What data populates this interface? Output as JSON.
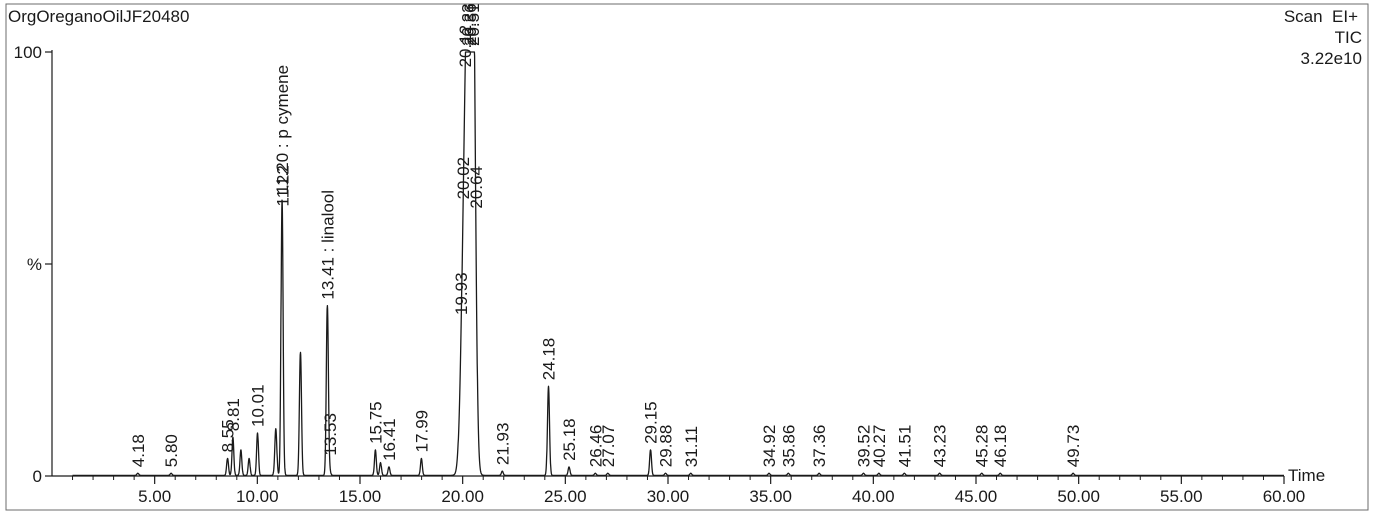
{
  "header": {
    "sample_name": "OrgOreganoOilJF20480",
    "scan_mode": "Scan  EI+",
    "trace": "TIC",
    "intensity": "3.22e10"
  },
  "chart_data": {
    "type": "line",
    "title": "OrgOreganoOilJF20480",
    "xlabel": "Time",
    "ylabel": "%",
    "xlim": [
      0,
      60
    ],
    "ylim": [
      0,
      100
    ],
    "x_ticks": [
      "5.00",
      "10.00",
      "15.00",
      "20.00",
      "25.00",
      "30.00",
      "35.00",
      "40.00",
      "45.00",
      "50.00",
      "55.00",
      "60.00"
    ],
    "x_tick_values": [
      5,
      10,
      15,
      20,
      25,
      30,
      35,
      40,
      45,
      50,
      55,
      60
    ],
    "y_ticks": [
      "0",
      "%",
      "100"
    ],
    "y_tick_values": [
      0,
      50,
      100
    ],
    "peaks": [
      {
        "x": 4.18,
        "y": 0.5,
        "label": "4.18"
      },
      {
        "x": 5.8,
        "y": 0.5,
        "label": "5.80"
      },
      {
        "x": 8.55,
        "y": 4,
        "label": "8.55"
      },
      {
        "x": 8.81,
        "y": 9,
        "label": "8.81"
      },
      {
        "x": 9.2,
        "y": 6,
        "label": ""
      },
      {
        "x": 9.6,
        "y": 4,
        "label": ""
      },
      {
        "x": 10.01,
        "y": 10,
        "label": "10.01"
      },
      {
        "x": 10.9,
        "y": 11,
        "label": ""
      },
      {
        "x": 11.2,
        "y": 52,
        "label": "11.20 : p cymene"
      },
      {
        "x": 11.22,
        "y": 14,
        "label": "11.22"
      },
      {
        "x": 12.1,
        "y": 29,
        "label": ""
      },
      {
        "x": 13.41,
        "y": 40,
        "label": "13.41 : linalool"
      },
      {
        "x": 13.53,
        "y": 1,
        "label": "13.53"
      },
      {
        "x": 15.75,
        "y": 6,
        "label": "15.75"
      },
      {
        "x": 16.0,
        "y": 3,
        "label": ""
      },
      {
        "x": 16.41,
        "y": 2,
        "label": "16.41"
      },
      {
        "x": 17.99,
        "y": 4,
        "label": "17.99"
      },
      {
        "x": 19.93,
        "y": 9,
        "label": "19.93"
      },
      {
        "x": 20.02,
        "y": 20,
        "label": "20.02"
      },
      {
        "x": 20.12,
        "y": 35,
        "label": "20.12"
      },
      {
        "x": 20.23,
        "y": 50,
        "label": "20.23"
      },
      {
        "x": 20.36,
        "y": 72,
        "label": "20.36"
      },
      {
        "x": 20.51,
        "y": 100,
        "label": "20.51"
      },
      {
        "x": 20.64,
        "y": 1,
        "label": "20.64"
      },
      {
        "x": 21.93,
        "y": 1,
        "label": "21.93"
      },
      {
        "x": 24.18,
        "y": 21,
        "label": "24.18"
      },
      {
        "x": 25.18,
        "y": 2,
        "label": "25.18"
      },
      {
        "x": 26.46,
        "y": 0.5,
        "label": "26.46"
      },
      {
        "x": 27.07,
        "y": 0.5,
        "label": "27.07"
      },
      {
        "x": 29.15,
        "y": 6,
        "label": "29.15"
      },
      {
        "x": 29.88,
        "y": 0.5,
        "label": "29.88"
      },
      {
        "x": 31.11,
        "y": 0.5,
        "label": "31.11"
      },
      {
        "x": 34.92,
        "y": 0.5,
        "label": "34.92"
      },
      {
        "x": 35.86,
        "y": 0.5,
        "label": "35.86"
      },
      {
        "x": 37.36,
        "y": 0.5,
        "label": "37.36"
      },
      {
        "x": 39.52,
        "y": 0.5,
        "label": "39.52"
      },
      {
        "x": 40.27,
        "y": 0.5,
        "label": "40.27"
      },
      {
        "x": 41.51,
        "y": 0.5,
        "label": "41.51"
      },
      {
        "x": 43.23,
        "y": 0.5,
        "label": "43.23"
      },
      {
        "x": 45.28,
        "y": 0.5,
        "label": "45.28"
      },
      {
        "x": 46.18,
        "y": 0.5,
        "label": "46.18"
      },
      {
        "x": 49.73,
        "y": 0.5,
        "label": "49.73"
      }
    ],
    "grid": false,
    "legend": "none",
    "colors": {
      "trace": "#1a1a1a",
      "axis": "#1a1a1a",
      "border": "#6b6b6b"
    }
  }
}
